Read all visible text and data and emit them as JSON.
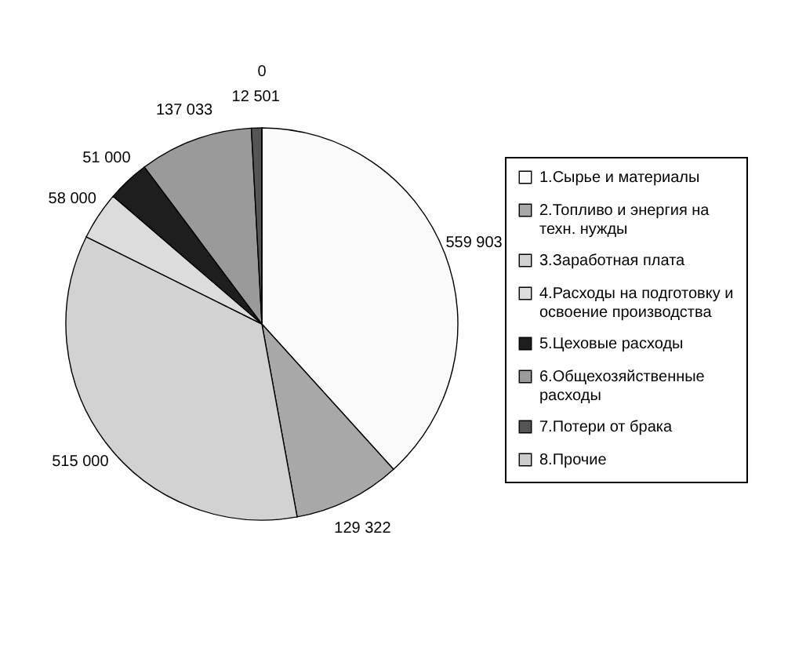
{
  "chart_data": {
    "type": "pie",
    "categories": [
      "1.Сырье и материалы",
      "2.Топливо и энергия на техн. нужды",
      "3.Заработная плата",
      "4.Расходы на подготовку и освоение производства",
      "5.Цеховые расходы",
      "6.Общехозяйственные расходы",
      "7.Потери от брака",
      "8.Прочие"
    ],
    "values": [
      559903,
      129322,
      515000,
      58000,
      51000,
      137033,
      12501,
      0
    ],
    "value_labels": [
      "559 903",
      "129 322",
      "515 000",
      "58 000",
      "51 000",
      "137 033",
      "12 501",
      "0"
    ],
    "colors": [
      "#fafafa",
      "#a8a8a8",
      "#d2d2d2",
      "#dcdcdc",
      "#1e1e1e",
      "#9a9a9a",
      "#555555",
      "#cccccc"
    ],
    "legend": "right"
  }
}
